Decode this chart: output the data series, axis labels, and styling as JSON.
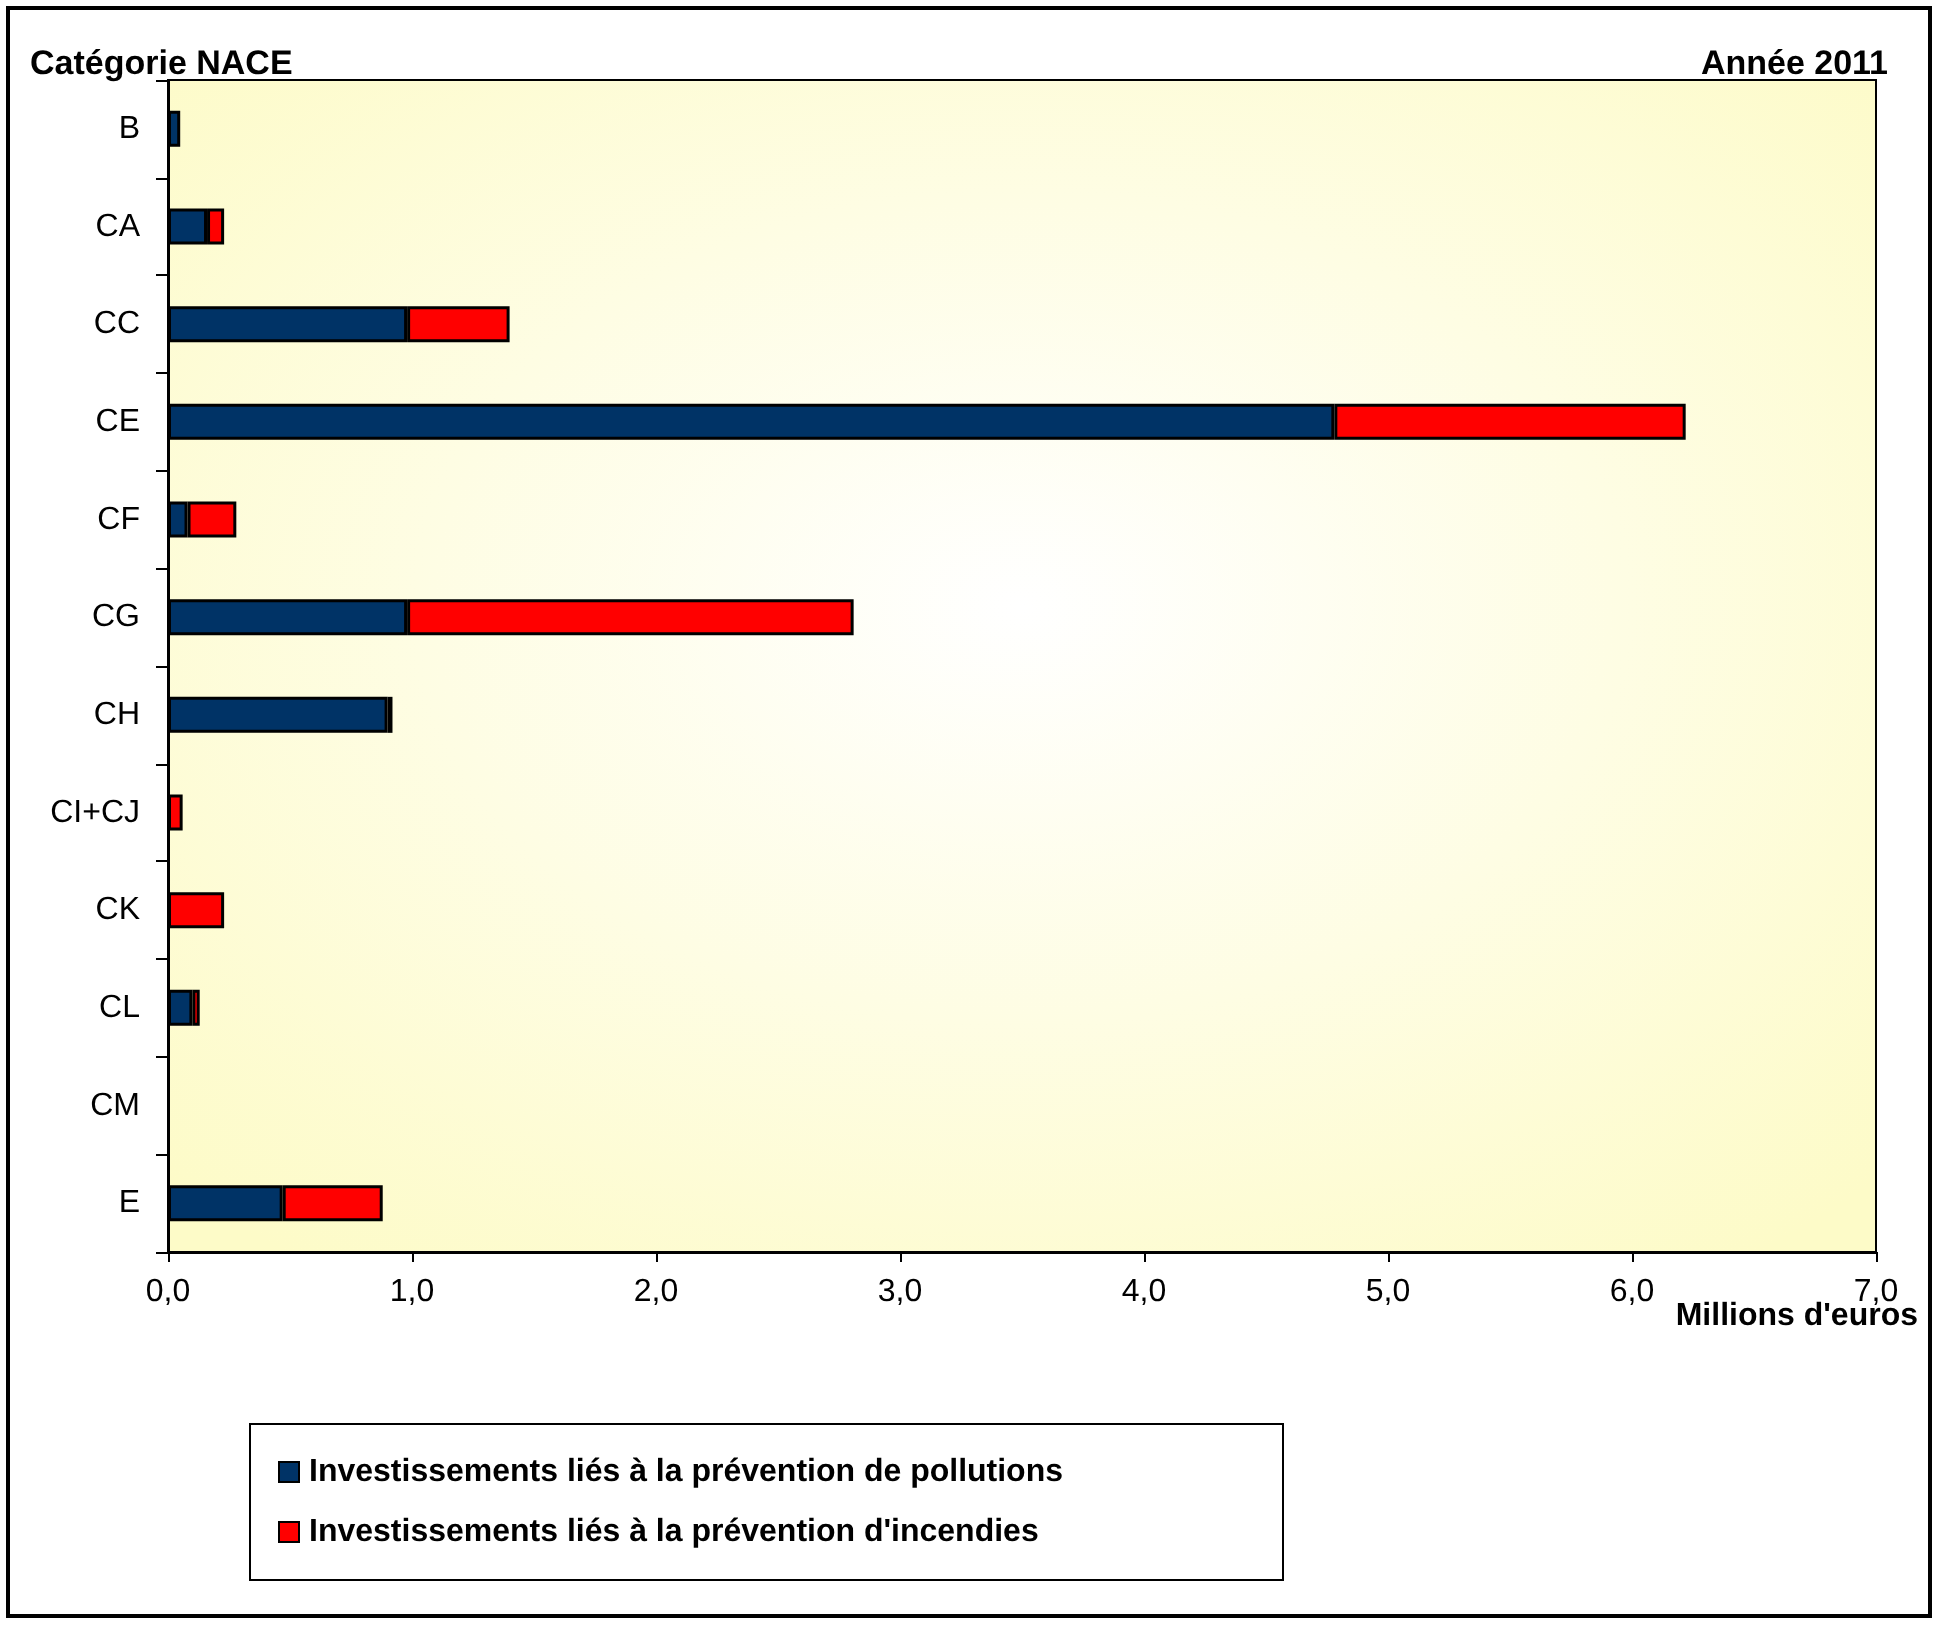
{
  "chart_data": {
    "type": "bar",
    "orientation": "horizontal",
    "stacked": true,
    "title": "Catégorie NACE",
    "subtitle": "Année 2011",
    "xlabel": "Millions d'euros",
    "categories": [
      "B",
      "CA",
      "CC",
      "CE",
      "CF",
      "CG",
      "CH",
      "CI+CJ",
      "CK",
      "CL",
      "CM",
      "E"
    ],
    "series": [
      {
        "name": "Investissements liés à la prévention de pollutions",
        "color": "#003366",
        "values": [
          0.05,
          0.16,
          0.98,
          4.78,
          0.08,
          0.98,
          0.9,
          0,
          0,
          0.1,
          0,
          0.47
        ]
      },
      {
        "name": "Investissements liés à la prévention d'incendies",
        "color": "#ff0000",
        "values": [
          0,
          0.07,
          0.42,
          1.44,
          0.2,
          1.83,
          0.02,
          0.06,
          0.23,
          0.03,
          0,
          0.41
        ]
      }
    ],
    "xlim": [
      0,
      7
    ],
    "xticks": [
      {
        "value": 0,
        "label": "0,0"
      },
      {
        "value": 1,
        "label": "1,0"
      },
      {
        "value": 2,
        "label": "2,0"
      },
      {
        "value": 3,
        "label": "3,0"
      },
      {
        "value": 4,
        "label": "4,0"
      },
      {
        "value": 5,
        "label": "5,0"
      },
      {
        "value": 6,
        "label": "6,0"
      },
      {
        "value": 7,
        "label": "7,0"
      }
    ],
    "grid": false,
    "legend": "bottom"
  }
}
